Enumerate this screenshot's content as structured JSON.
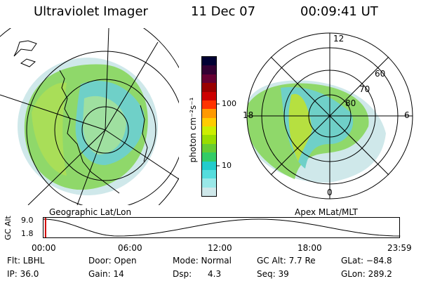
{
  "header": {
    "instrument": "Ultraviolet Imager",
    "date": "11 Dec 07",
    "time": "00:09:41 UT"
  },
  "left_panel": {
    "caption": "Geographic Lat/Lon"
  },
  "right_panel": {
    "caption": "Apex MLat/MLT",
    "mlt_labels": [
      "12",
      "6",
      "0",
      "18"
    ],
    "mlat_labels": [
      "80",
      "70",
      "60"
    ]
  },
  "colorbar": {
    "unit_label": "photon cm⁻²s⁻¹",
    "tick_labels": [
      "100",
      "10"
    ],
    "colors": [
      "#000033",
      "#330033",
      "#660033",
      "#990000",
      "#cc0000",
      "#ff3300",
      "#ff9900",
      "#ffcc00",
      "#ccee00",
      "#99dd00",
      "#66cc33",
      "#33cc66",
      "#22cccc",
      "#55dddd",
      "#99e8e8",
      "#cfe8ea"
    ]
  },
  "altitude_plot": {
    "y_label": "GC Alt",
    "y_ticks": [
      "9.0",
      "1.8"
    ],
    "x_ticks": [
      "00:00",
      "06:00",
      "12:00",
      "18:00",
      "23:59"
    ],
    "curve_points": [
      {
        "hour": 0.0,
        "alt": 9.0
      },
      {
        "hour": 5.0,
        "alt": 1.8
      },
      {
        "hour": 14.5,
        "alt": 9.0
      },
      {
        "hour": 23.99,
        "alt": 1.8
      }
    ],
    "current_hour": 0.16
  },
  "info": {
    "flt": "Flt: LBHL",
    "ip": "IP: 36.0",
    "door": "Door: Open",
    "gain": "Gain: 14",
    "mode": "Mode: Normal",
    "dsp": "Dsp:      4.3",
    "gcalt": "GC Alt: 7.7 Re",
    "seq": "Seq: 39",
    "glat": "GLat: −84.8",
    "glon": "GLon: 289.2"
  }
}
